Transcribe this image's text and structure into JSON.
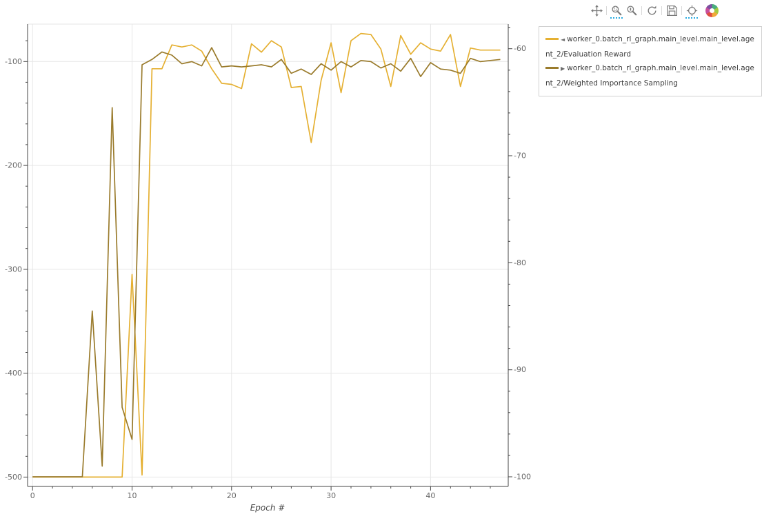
{
  "toolbar": {
    "tools": [
      {
        "name": "pan",
        "active": false
      },
      {
        "name": "box-zoom",
        "active": true
      },
      {
        "name": "wheel-zoom",
        "active": false
      },
      {
        "name": "reset",
        "active": false
      },
      {
        "name": "save",
        "active": false
      },
      {
        "name": "hover",
        "active": true
      }
    ],
    "active_color": "#26aae1",
    "logo": "bokeh"
  },
  "legend": {
    "entries": [
      {
        "marker": "◄",
        "color": "#e5b032",
        "label": "worker_0.batch_rl_graph.main_level.main_level.agent_2/Evaluation Reward"
      },
      {
        "marker": "▶",
        "color": "#9a7b2c",
        "label": "worker_0.batch_rl_graph.main_level.main_level.agent_2/Weighted Importance Sampling"
      }
    ]
  },
  "chart_data": {
    "type": "line",
    "title": "",
    "xlabel": "Epoch #",
    "grid": true,
    "legend_position": "top-right-outside",
    "x_range": [
      -0.5,
      47.8
    ],
    "x_ticks": [
      0,
      10,
      20,
      30,
      40
    ],
    "left_axis": {
      "ticks": [
        -100,
        -200,
        -300,
        -400,
        -500
      ],
      "range": [
        -509,
        -64
      ]
    },
    "right_axis": {
      "ticks": [
        -60,
        -70,
        -80,
        -90,
        -100
      ],
      "range": [
        -100.9,
        -57.7
      ]
    },
    "x": [
      0,
      1,
      2,
      3,
      4,
      5,
      6,
      7,
      8,
      9,
      10,
      11,
      12,
      13,
      14,
      15,
      16,
      17,
      18,
      19,
      20,
      21,
      22,
      23,
      24,
      25,
      26,
      27,
      28,
      29,
      30,
      31,
      32,
      33,
      34,
      35,
      36,
      37,
      38,
      39,
      40,
      41,
      42,
      43,
      44,
      45,
      46,
      47
    ],
    "series": [
      {
        "name": "worker_0.batch_rl_graph.main_level.main_level.agent_2/Evaluation Reward",
        "axis": "left",
        "color": "#e5b032",
        "values": [
          -500,
          -500,
          -500,
          -500,
          -500,
          -500,
          -500,
          -500,
          -500,
          -500,
          -305,
          -498,
          -107,
          -107,
          -84,
          -86,
          -84,
          -90,
          -107,
          -121,
          -122,
          -126,
          -83,
          -91,
          -80,
          -86,
          -125,
          -124,
          -178,
          -118,
          -82,
          -130,
          -80,
          -73,
          -74,
          -88,
          -124,
          -75,
          -93,
          -82,
          -88,
          -90,
          -74,
          -124,
          -87,
          -89,
          -89,
          -89
        ]
      },
      {
        "name": "worker_0.batch_rl_graph.main_level.main_level.agent_2/Weighted Importance Sampling",
        "axis": "right",
        "color": "#9a7b2c",
        "values": [
          -100,
          -100,
          -100,
          -100,
          -100,
          -100,
          -84.5,
          -99,
          -65.5,
          -93.5,
          -96.5,
          -61.5,
          -61,
          -60.3,
          -60.6,
          -61.4,
          -61.2,
          -61.6,
          -59.9,
          -61.7,
          -61.6,
          -61.7,
          -61.6,
          -61.5,
          -61.7,
          -61,
          -62.3,
          -61.9,
          -62.4,
          -61.4,
          -62,
          -61.2,
          -61.7,
          -61.1,
          -61.2,
          -61.8,
          -61.4,
          -62.1,
          -60.9,
          -62.6,
          -61.3,
          -61.9,
          -62,
          -62.3,
          -60.9,
          -61.2,
          -61.1,
          -61
        ]
      }
    ]
  }
}
